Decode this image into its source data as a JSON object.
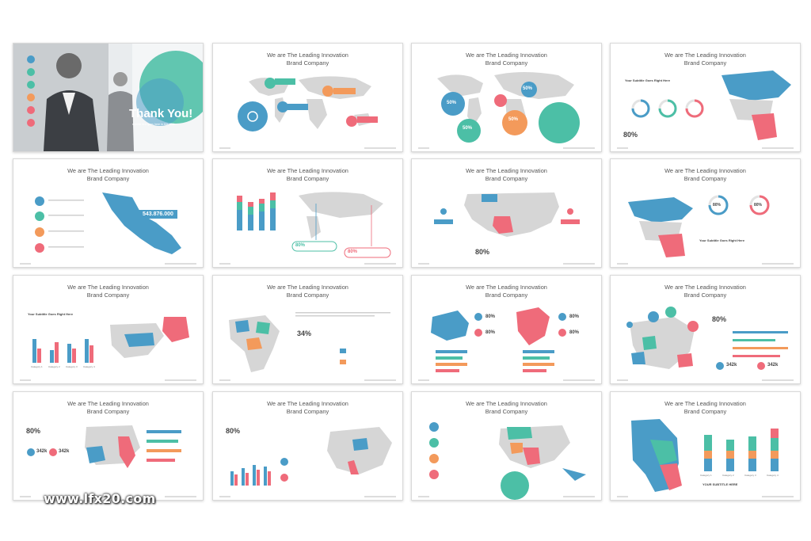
{
  "slide_title": [
    "We are The Leading Innovation",
    "Brand Company"
  ],
  "thank_you": {
    "heading": "Thank You!",
    "subtitle": "subtitle text goes here in this slide"
  },
  "stats": {
    "p50": "50%",
    "p80": "80%",
    "p34": "34%",
    "k342": "342k",
    "money": "543.876.000"
  },
  "subtitle_goes_right_here": "Your Subtitle Goes Right Here",
  "your_subtitle_here": "YOUR SUBTITLE HERE",
  "category_labels": [
    "Category 1",
    "Category 2",
    "Category 3",
    "Category 4"
  ],
  "watermark": "www.lfx20.com",
  "colors": {
    "blue": "#4a9cc7",
    "teal": "#4cbfa6",
    "orange": "#f39a5b",
    "red": "#ef6b7a",
    "map_gray": "#d6d6d6"
  }
}
